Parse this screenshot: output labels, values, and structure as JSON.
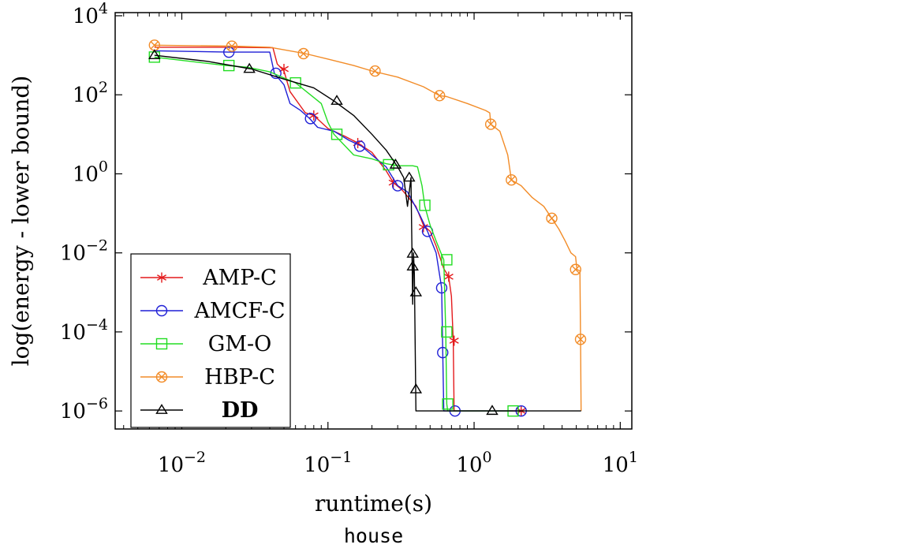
{
  "chart_data": {
    "type": "line",
    "xlabel": "runtime(s)",
    "ylabel": "log(energy - lower bound)",
    "caption": "house",
    "x_scale": "log",
    "y_scale": "log",
    "xlim": [
      0.0035,
      12
    ],
    "ylim": [
      3.5e-07,
      12000
    ],
    "x_ticks": [
      {
        "value": 0.01,
        "base": "10",
        "exp": "−2"
      },
      {
        "value": 0.1,
        "base": "10",
        "exp": "−1"
      },
      {
        "value": 1,
        "base": "10",
        "exp": "0"
      },
      {
        "value": 10,
        "base": "10",
        "exp": "1"
      }
    ],
    "y_ticks": [
      {
        "value": 1e-06,
        "base": "10",
        "exp": "−6"
      },
      {
        "value": 0.0001,
        "base": "10",
        "exp": "−4"
      },
      {
        "value": 0.01,
        "base": "10",
        "exp": "−2"
      },
      {
        "value": 1,
        "base": "10",
        "exp": "0"
      },
      {
        "value": 100,
        "base": "10",
        "exp": "2"
      },
      {
        "value": 10000,
        "base": "10",
        "exp": "4"
      }
    ],
    "grid": false,
    "legend_position": "bottom-left",
    "series": [
      {
        "name": "AMP-C",
        "color": "#e41a1c",
        "marker": "star",
        "bold": false,
        "points": [
          [
            0.0065,
            1600
          ],
          [
            0.022,
            1600
          ],
          [
            0.042,
            1550
          ],
          [
            0.045,
            600
          ],
          [
            0.05,
            400
          ],
          [
            0.055,
            120
          ],
          [
            0.07,
            35
          ],
          [
            0.08,
            30
          ],
          [
            0.1,
            14
          ],
          [
            0.13,
            9
          ],
          [
            0.16,
            6
          ],
          [
            0.2,
            3.5
          ],
          [
            0.25,
            1.2
          ],
          [
            0.28,
            0.6
          ],
          [
            0.32,
            0.4
          ],
          [
            0.4,
            0.15
          ],
          [
            0.45,
            0.05
          ],
          [
            0.5,
            0.035
          ],
          [
            0.55,
            0.015
          ],
          [
            0.62,
            0.004
          ],
          [
            0.67,
            0.0025
          ],
          [
            0.7,
            0.0008
          ],
          [
            0.72,
            6e-05
          ],
          [
            0.73,
            1e-06
          ],
          [
            2.1,
            1e-06
          ]
        ],
        "markers": [
          [
            0.05,
            450
          ],
          [
            0.08,
            30
          ],
          [
            0.16,
            6
          ],
          [
            0.28,
            0.6
          ],
          [
            0.45,
            0.045
          ],
          [
            0.67,
            0.0025
          ],
          [
            0.73,
            6e-05
          ],
          [
            2.1,
            1e-06
          ]
        ]
      },
      {
        "name": "AMCF-C",
        "color": "#1f1fd6",
        "marker": "circle",
        "bold": false,
        "points": [
          [
            0.0065,
            1300
          ],
          [
            0.021,
            1200
          ],
          [
            0.04,
            1200
          ],
          [
            0.043,
            350
          ],
          [
            0.05,
            180
          ],
          [
            0.055,
            60
          ],
          [
            0.065,
            40
          ],
          [
            0.075,
            25
          ],
          [
            0.085,
            15
          ],
          [
            0.11,
            12
          ],
          [
            0.14,
            7
          ],
          [
            0.17,
            5
          ],
          [
            0.2,
            3
          ],
          [
            0.25,
            1.5
          ],
          [
            0.3,
            0.5
          ],
          [
            0.35,
            0.35
          ],
          [
            0.42,
            0.1
          ],
          [
            0.48,
            0.035
          ],
          [
            0.55,
            0.01
          ],
          [
            0.6,
            0.0013
          ],
          [
            0.61,
            3e-05
          ],
          [
            0.62,
            1e-06
          ],
          [
            2.1,
            1e-06
          ]
        ],
        "markers": [
          [
            0.021,
            1200
          ],
          [
            0.044,
            350
          ],
          [
            0.076,
            25
          ],
          [
            0.165,
            5
          ],
          [
            0.3,
            0.5
          ],
          [
            0.48,
            0.035
          ],
          [
            0.6,
            0.0013
          ],
          [
            0.61,
            3e-05
          ],
          [
            0.74,
            1e-06
          ],
          [
            2.1,
            1e-06
          ]
        ]
      },
      {
        "name": "GM-O",
        "color": "#22dd22",
        "marker": "square",
        "bold": false,
        "points": [
          [
            0.0065,
            900
          ],
          [
            0.02,
            550
          ],
          [
            0.028,
            500
          ],
          [
            0.04,
            380
          ],
          [
            0.06,
            200
          ],
          [
            0.09,
            60
          ],
          [
            0.1,
            20
          ],
          [
            0.11,
            10
          ],
          [
            0.15,
            3
          ],
          [
            0.2,
            2.4
          ],
          [
            0.25,
            1.8
          ],
          [
            0.3,
            1.6
          ],
          [
            0.38,
            1.6
          ],
          [
            0.41,
            1.5
          ],
          [
            0.44,
            0.5
          ],
          [
            0.46,
            0.15
          ],
          [
            0.5,
            0.05
          ],
          [
            0.55,
            0.02
          ],
          [
            0.6,
            0.009
          ],
          [
            0.62,
            0.0067
          ],
          [
            0.64,
            0.0001
          ],
          [
            0.65,
            1.5e-06
          ],
          [
            0.66,
            1e-06
          ],
          [
            1.85,
            1e-06
          ]
        ],
        "markers": [
          [
            0.0065,
            900
          ],
          [
            0.021,
            550
          ],
          [
            0.06,
            200
          ],
          [
            0.115,
            10
          ],
          [
            0.26,
            1.7
          ],
          [
            0.46,
            0.16
          ],
          [
            0.65,
            0.0067
          ],
          [
            0.65,
            0.0001
          ],
          [
            0.66,
            1.5e-06
          ],
          [
            1.85,
            1e-06
          ]
        ]
      },
      {
        "name": "HBP-C",
        "color": "#f28c28",
        "marker": "circle-x",
        "bold": false,
        "points": [
          [
            0.0065,
            1800
          ],
          [
            0.022,
            1700
          ],
          [
            0.04,
            1600
          ],
          [
            0.07,
            1100
          ],
          [
            0.1,
            800
          ],
          [
            0.15,
            550
          ],
          [
            0.2,
            400
          ],
          [
            0.3,
            280
          ],
          [
            0.45,
            160
          ],
          [
            0.58,
            95
          ],
          [
            0.65,
            90
          ],
          [
            0.9,
            60
          ],
          [
            1.2,
            40
          ],
          [
            1.28,
            35
          ],
          [
            1.3,
            18
          ],
          [
            1.5,
            12
          ],
          [
            1.7,
            3
          ],
          [
            1.8,
            0.7
          ],
          [
            2.1,
            0.5
          ],
          [
            2.5,
            0.25
          ],
          [
            3,
            0.15
          ],
          [
            3.4,
            0.075
          ],
          [
            3.8,
            0.04
          ],
          [
            4.2,
            0.02
          ],
          [
            4.6,
            0.01
          ],
          [
            4.95,
            0.008
          ],
          [
            5.05,
            0.0038
          ],
          [
            5.3,
            0.0035
          ],
          [
            5.35,
            6.5e-05
          ],
          [
            5.4,
            1e-06
          ]
        ],
        "markers": [
          [
            0.0065,
            1800
          ],
          [
            0.022,
            1700
          ],
          [
            0.068,
            1100
          ],
          [
            0.21,
            400
          ],
          [
            0.58,
            95
          ],
          [
            1.3,
            18
          ],
          [
            1.8,
            0.7
          ],
          [
            3.4,
            0.075
          ],
          [
            4.95,
            0.0038
          ],
          [
            5.35,
            6.5e-05
          ]
        ]
      },
      {
        "name": "DD",
        "color": "#000000",
        "marker": "triangle",
        "bold": true,
        "points": [
          [
            0.0065,
            1000
          ],
          [
            0.015,
            700
          ],
          [
            0.03,
            450
          ],
          [
            0.05,
            250
          ],
          [
            0.08,
            150
          ],
          [
            0.11,
            70
          ],
          [
            0.15,
            30
          ],
          [
            0.2,
            10
          ],
          [
            0.25,
            4
          ],
          [
            0.3,
            1.5
          ],
          [
            0.33,
            0.8
          ],
          [
            0.35,
            0.15
          ],
          [
            0.37,
            0.8
          ],
          [
            0.38,
            0.0005
          ],
          [
            0.385,
            0.01
          ],
          [
            0.39,
            0.003
          ],
          [
            0.4,
            1e-06
          ],
          [
            5.4,
            1e-06
          ]
        ],
        "markers": [
          [
            0.0065,
            1000
          ],
          [
            0.029,
            450
          ],
          [
            0.115,
            70
          ],
          [
            0.29,
            1.7
          ],
          [
            0.36,
            0.8
          ],
          [
            0.38,
            0.0095
          ],
          [
            0.38,
            0.0045
          ],
          [
            0.4,
            0.001
          ],
          [
            0.4,
            3.5e-06
          ],
          [
            1.33,
            1e-06
          ]
        ]
      }
    ]
  }
}
